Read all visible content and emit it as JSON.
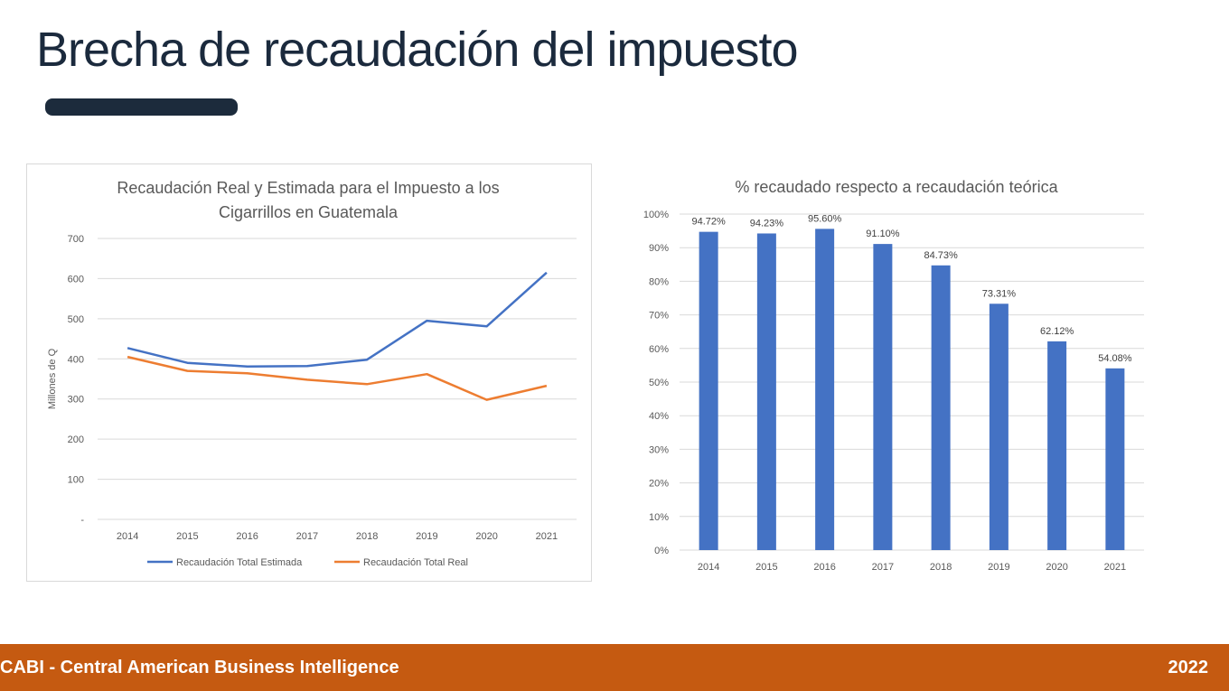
{
  "slide": {
    "title": "Brecha de recaudación del impuesto"
  },
  "footer": {
    "org": "CABI - Central American Business Intelligence",
    "year": "2022"
  },
  "chart_data": [
    {
      "type": "line",
      "title": "Recaudación Real y Estimada para el Impuesto a los Cigarrillos en Guatemala",
      "title_lines": [
        "Recaudación Real y Estimada para el Impuesto a los",
        "Cigarrillos en Guatemala"
      ],
      "ylabel": "Millones de Q",
      "xlabel": "",
      "ylim": [
        0,
        700
      ],
      "yticks": [
        "-",
        "100",
        "200",
        "300",
        "400",
        "500",
        "600",
        "700"
      ],
      "categories": [
        "2014",
        "2015",
        "2016",
        "2017",
        "2018",
        "2019",
        "2020",
        "2021"
      ],
      "series": [
        {
          "name": "Recaudación Total Estimada",
          "color": "#4472c4",
          "values": [
            427,
            390,
            381,
            382,
            398,
            495,
            481,
            615
          ]
        },
        {
          "name": "Recaudación Total Real",
          "color": "#ed7d31",
          "values": [
            405,
            370,
            364,
            348,
            337,
            362,
            298,
            333
          ]
        }
      ],
      "grid": true,
      "legend": "bottom"
    },
    {
      "type": "bar",
      "title": "% recaudado respecto a recaudación teórica",
      "xlabel": "",
      "ylabel": "",
      "ylim": [
        0,
        100
      ],
      "yticks": [
        "0%",
        "10%",
        "20%",
        "30%",
        "40%",
        "50%",
        "60%",
        "70%",
        "80%",
        "90%",
        "100%"
      ],
      "categories": [
        "2014",
        "2015",
        "2016",
        "2017",
        "2018",
        "2019",
        "2020",
        "2021"
      ],
      "values": [
        94.72,
        94.23,
        95.6,
        91.1,
        84.73,
        73.31,
        62.12,
        54.08
      ],
      "data_labels": [
        "94.72%",
        "94.23%",
        "95.60%",
        "91.10%",
        "84.73%",
        "73.31%",
        "62.12%",
        "54.08%"
      ],
      "color": "#4472c4",
      "grid": true,
      "legend": "none"
    }
  ]
}
